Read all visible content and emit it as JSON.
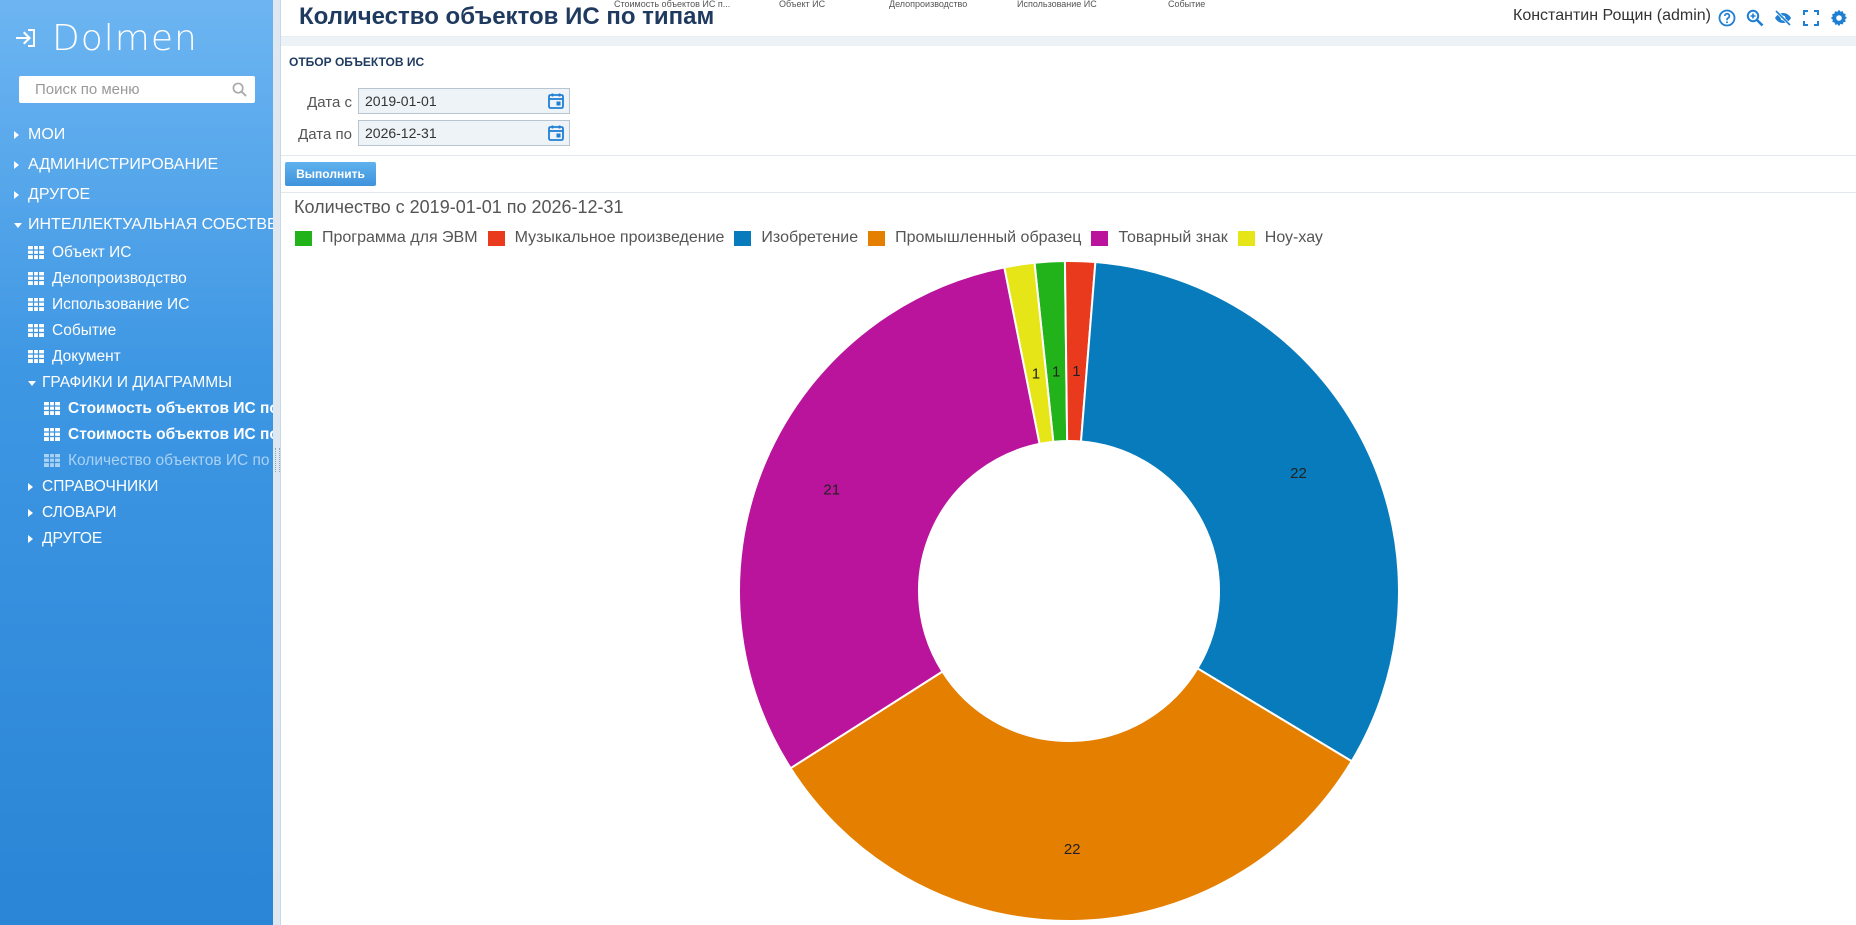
{
  "brand": {
    "name": "Dolmen"
  },
  "sidebar": {
    "search_placeholder": "Поиск по меню",
    "items": [
      {
        "label": "МОИ"
      },
      {
        "label": "АДМИНИСТРИРОВАНИЕ"
      },
      {
        "label": "ДРУГОЕ"
      },
      {
        "label": "ИНТЕЛЛЕКТУАЛЬНАЯ СОБСТВЕН"
      },
      {
        "label": "Объект ИС"
      },
      {
        "label": "Делопроизводство"
      },
      {
        "label": "Использование ИС"
      },
      {
        "label": "Событие"
      },
      {
        "label": "Документ"
      },
      {
        "label": "ГРАФИКИ И ДИАГРАММЫ"
      },
      {
        "label": "Стоимость объектов ИС по"
      },
      {
        "label": "Стоимость объектов ИС пол"
      },
      {
        "label": "Количество объектов ИС по"
      },
      {
        "label": "СПРАВОЧНИКИ"
      },
      {
        "label": "СЛОВАРИ"
      },
      {
        "label": "ДРУГОЕ"
      }
    ]
  },
  "header": {
    "title": "Количество объектов ИС по типам",
    "tabs": [
      "Стоимость объектов ИС п...",
      "Объект ИС",
      "Делопроизводство",
      "Использование ИС",
      "Событие"
    ],
    "user": "Константин Рощин (admin)"
  },
  "filter": {
    "section_title": "ОТБОР ОБЪЕКТОВ ИС",
    "date_from_label": "Дата с",
    "date_from": "2019-01-01",
    "date_to_label": "Дата по",
    "date_to": "2026-12-31",
    "run_button": "Выполнить"
  },
  "chart_data": {
    "type": "pie",
    "donut": true,
    "title": "Количество с 2019-01-01 по 2026-12-31",
    "legend_position": "top-left",
    "categories": [
      "Программа для ЭВМ",
      "Музыкальное произведение",
      "Изобретение",
      "Промышленный образец",
      "Товарный знак",
      "Ноу-хау"
    ],
    "values": [
      1,
      1,
      22,
      22,
      21,
      1
    ],
    "colors": [
      "#21b319",
      "#ea3a1e",
      "#077bbb",
      "#e57f00",
      "#b9149b",
      "#e5e517"
    ]
  }
}
